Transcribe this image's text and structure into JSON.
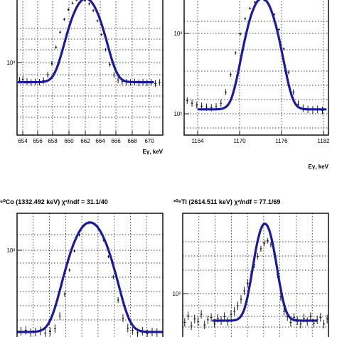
{
  "chart_data": [
    {
      "type": "scatter",
      "title": "",
      "xlabel": "Eγ, keV",
      "xlim": [
        653.4,
        671.0
      ],
      "ylim": [
        30,
        4000
      ],
      "yscale": "log",
      "x_ticks": [
        "654",
        "656",
        "658",
        "660",
        "662",
        "664",
        "666",
        "668",
        "670"
      ],
      "y_ticks": [
        "10³"
      ],
      "grid": true,
      "fit": {
        "peak": 661.7,
        "sigma": 1.35,
        "amplitude": 3800,
        "background": 200
      },
      "series": [
        {
          "x": [
            653.7,
            654.1,
            654.6,
            655.1,
            655.6,
            656.1,
            656.6,
            657.1,
            657.6,
            658.1,
            658.6,
            659.1,
            659.6,
            660.1,
            660.6,
            661.1,
            661.6,
            662.1,
            662.6,
            663.1,
            663.6,
            664.1,
            664.6,
            665.1,
            665.6,
            666.1,
            666.6,
            667.1,
            667.6,
            668.1,
            668.6,
            669.1,
            669.6,
            670.1,
            670.6
          ],
          "y": [
            215,
            220,
            205,
            198,
            202,
            200,
            212,
            260,
            390,
            700,
            1200,
            1900,
            2700,
            3400,
            3800,
            3850,
            3750,
            3300,
            2600,
            1800,
            1100,
            640,
            380,
            260,
            215,
            205,
            200,
            198,
            202,
            196,
            200,
            195,
            200,
            190,
            198
          ]
        }
      ]
    },
    {
      "type": "scatter",
      "title": "",
      "xlabel": "Eγ, keV",
      "xlim": [
        1160.3,
        1184.2
      ],
      "ylim": [
        70,
        4000
      ],
      "yscale": "log",
      "x_ticks": [
        "1164",
        "1170",
        "1176",
        "1182"
      ],
      "y_ticks": [
        "10²",
        "10³"
      ],
      "grid": true,
      "fit": {
        "peak": 1173.2,
        "sigma": 1.75,
        "amplitude": 3900,
        "background": 150
      },
      "series": [
        {
          "x": [
            1160.8,
            1161.6,
            1162.4,
            1163.2,
            1164.0,
            1164.8,
            1165.6,
            1166.4,
            1167.2,
            1168.0,
            1168.8,
            1169.6,
            1170.4,
            1171.2,
            1172.0,
            1172.8,
            1173.6,
            1174.4,
            1175.2,
            1176.0,
            1176.8,
            1177.6,
            1178.4,
            1179.2,
            1180.0,
            1180.8,
            1181.6,
            1182.4,
            1183.2
          ],
          "y": [
            195,
            180,
            170,
            165,
            160,
            158,
            162,
            180,
            250,
            420,
            800,
            1400,
            2200,
            3000,
            3600,
            3900,
            3800,
            3300,
            2500,
            1600,
            900,
            450,
            250,
            175,
            155,
            150,
            148,
            150,
            145
          ]
        }
      ]
    },
    {
      "type": "scatter",
      "title": "⁶⁰Co (1332.492 keV) χ²/ndf = 31.1/40",
      "xlabel": "",
      "xlim": [
        1325.0,
        1340.0
      ],
      "ylim": [
        70,
        4000
      ],
      "yscale": "log",
      "x_ticks": [],
      "y_ticks": [
        "10³"
      ],
      "grid": true,
      "fit": {
        "peak": 1332.5,
        "sigma": 1.4,
        "amplitude": 2900,
        "background": 90
      },
      "series": [
        {
          "x": [
            1325.4,
            1325.9,
            1326.4,
            1326.9,
            1327.4,
            1327.9,
            1328.4,
            1328.9,
            1329.4,
            1329.9,
            1330.4,
            1330.9,
            1331.4,
            1331.9,
            1332.4,
            1332.9,
            1333.4,
            1333.9,
            1334.4,
            1334.9,
            1335.4,
            1335.9,
            1336.4,
            1336.9,
            1337.4,
            1337.9,
            1338.4,
            1338.9,
            1339.4
          ],
          "y": [
            92,
            95,
            88,
            90,
            93,
            87,
            91,
            100,
            150,
            300,
            650,
            1200,
            2000,
            2700,
            2950,
            2850,
            2400,
            1700,
            1000,
            520,
            250,
            140,
            102,
            95,
            88,
            92,
            85,
            90,
            88
          ]
        }
      ]
    },
    {
      "type": "scatter",
      "title": "²⁰⁸Tl (2614.511 keV) χ²/ndf = 77.1/69",
      "xlabel": "",
      "xlim": [
        2602.0,
        2624.0
      ],
      "ylim": [
        60,
        400
      ],
      "yscale": "log",
      "x_ticks": [],
      "y_ticks": [
        "10²"
      ],
      "grid": true,
      "fit": {
        "peak": 2614.4,
        "sigma": 1.3,
        "amplitude": 262,
        "background": 80
      },
      "series": [
        {
          "x": [
            2602.3,
            2602.8,
            2603.3,
            2603.8,
            2604.3,
            2604.8,
            2605.3,
            2605.8,
            2606.3,
            2606.8,
            2607.3,
            2607.8,
            2608.3,
            2608.8,
            2609.3,
            2609.8,
            2610.3,
            2610.8,
            2611.3,
            2611.8,
            2612.3,
            2612.8,
            2613.3,
            2613.8,
            2614.3,
            2614.8,
            2615.3,
            2615.8,
            2616.3,
            2616.8,
            2617.3,
            2617.8,
            2618.3,
            2618.8,
            2619.3,
            2619.8,
            2620.3,
            2620.8,
            2621.3,
            2621.8,
            2622.3,
            2622.8,
            2623.3,
            2623.8
          ],
          "y": [
            78,
            86,
            74,
            82,
            79,
            88,
            75,
            81,
            84,
            77,
            83,
            80,
            85,
            79,
            88,
            92,
            100,
            110,
            125,
            140,
            160,
            185,
            210,
            235,
            255,
            265,
            250,
            215,
            160,
            115,
            92,
            85,
            78,
            84,
            80,
            76,
            83,
            79,
            85,
            77,
            81,
            84,
            76,
            82
          ]
        }
      ]
    }
  ]
}
